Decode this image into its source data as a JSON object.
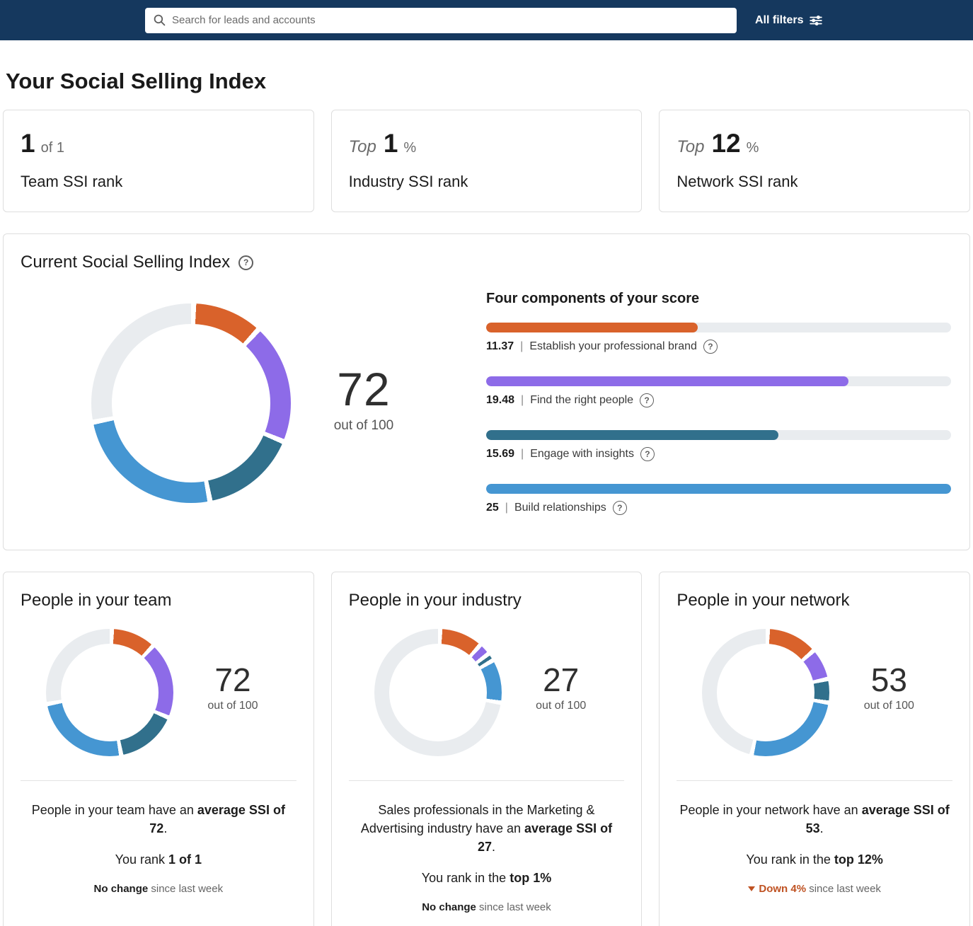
{
  "colors": {
    "topbar": "#15385e",
    "orange": "#d9622b",
    "purple": "#8d6be8",
    "teal": "#31708c",
    "blue": "#4596d2",
    "track": "#e9ecef",
    "down": "#bf5222"
  },
  "icons": {
    "help": "?"
  },
  "topbar": {
    "search_placeholder": "Search for leads and accounts",
    "all_filters": "All filters"
  },
  "page_title": "Your Social Selling Index",
  "rank_cards": [
    {
      "value": "1",
      "suffix": "of 1",
      "label": "Team SSI rank"
    },
    {
      "prefix": "Top",
      "value": "1",
      "suffix": "%",
      "label": "Industry SSI rank"
    },
    {
      "prefix": "Top",
      "value": "12",
      "suffix": "%",
      "label": "Network SSI rank"
    }
  ],
  "current": {
    "title": "Current Social Selling Index",
    "score": "72",
    "out_of": "out of 100",
    "components_heading": "Four components of your score",
    "components": [
      {
        "value": "11.37",
        "separator": "|",
        "label": "Establish your professional brand",
        "pct": 45.5,
        "color": "orange"
      },
      {
        "value": "19.48",
        "separator": "|",
        "label": "Find the right people",
        "pct": 77.9,
        "color": "purple"
      },
      {
        "value": "15.69",
        "separator": "|",
        "label": "Engage with insights",
        "pct": 62.8,
        "color": "teal"
      },
      {
        "value": "25",
        "separator": "|",
        "label": "Build relationships",
        "pct": 100,
        "color": "blue"
      }
    ],
    "donut": {
      "values": [
        11.37,
        19.48,
        15.69,
        25
      ],
      "total": 100,
      "colors": [
        "orange",
        "purple",
        "teal",
        "blue"
      ],
      "track": "track",
      "gap": 3
    }
  },
  "cards": [
    {
      "title": "People in your team",
      "score": "72",
      "out_of": "out of 100",
      "donut": {
        "values": [
          11.37,
          19.48,
          15.69,
          25
        ],
        "total": 100,
        "colors": [
          "orange",
          "purple",
          "teal",
          "blue"
        ],
        "track": "track",
        "gap": 4
      },
      "summary_pre": "People in your team have an ",
      "summary_bold": "average SSI of 72",
      "summary_post": ".",
      "rank_pre": "You rank ",
      "rank_bold": "1 of 1",
      "change_bold": "No change",
      "change_rest": " since last week"
    },
    {
      "title": "People in your industry",
      "score": "27",
      "out_of": "out of 100",
      "donut": {
        "values": [
          11,
          3,
          2,
          11
        ],
        "total": 100,
        "colors": [
          "orange",
          "purple",
          "teal",
          "blue"
        ],
        "track": "track",
        "gap": 4
      },
      "summary_pre": "Sales professionals in the Marketing & Advertising industry have an ",
      "summary_bold": "average SSI of 27",
      "summary_post": ".",
      "rank_pre": "You rank in the ",
      "rank_bold": "top 1%",
      "change_bold": "No change",
      "change_rest": " since last week"
    },
    {
      "title": "People in your network",
      "score": "53",
      "out_of": "out of 100",
      "donut": {
        "values": [
          13,
          8,
          6,
          26
        ],
        "total": 100,
        "colors": [
          "orange",
          "purple",
          "teal",
          "blue"
        ],
        "track": "track",
        "gap": 4
      },
      "summary_pre": "People in your network have an ",
      "summary_bold": "average SSI of 53",
      "summary_post": ".",
      "rank_pre": "You rank in the ",
      "rank_bold": "top 12%",
      "change_bold": "Down 4%",
      "change_rest": " since last week"
    }
  ]
}
